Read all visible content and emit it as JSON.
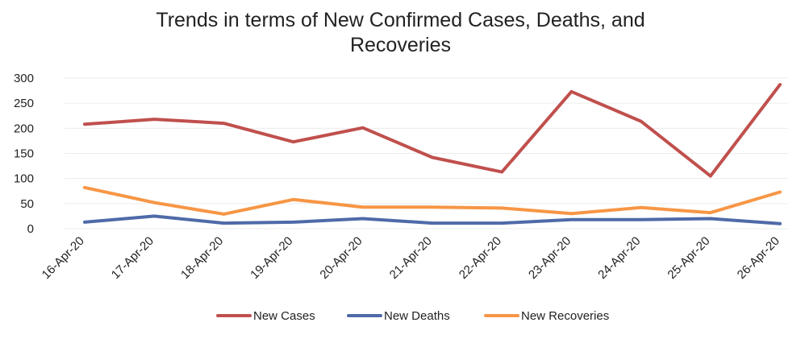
{
  "chart_data": {
    "type": "line",
    "title_lines": [
      "Trends in terms of New Confirmed Cases, Deaths, and",
      "Recoveries"
    ],
    "xlabel": "",
    "ylabel": "",
    "categories": [
      "16-Apr-20",
      "17-Apr-20",
      "18-Apr-20",
      "19-Apr-20",
      "20-Apr-20",
      "21-Apr-20",
      "22-Apr-20",
      "23-Apr-20",
      "24-Apr-20",
      "25-Apr-20",
      "26-Apr-20"
    ],
    "ylim": [
      0,
      300
    ],
    "yticks": [
      0,
      50,
      100,
      150,
      200,
      250,
      300
    ],
    "grid": true,
    "legend_position": "bottom",
    "series": [
      {
        "name": "New Cases",
        "color": "#c0504d",
        "values": [
          208,
          218,
          210,
          173,
          201,
          142,
          113,
          273,
          214,
          105,
          287
        ]
      },
      {
        "name": "New Deaths",
        "color": "#4f6aa8",
        "values": [
          13,
          25,
          11,
          13,
          20,
          11,
          11,
          18,
          18,
          20,
          10
        ]
      },
      {
        "name": "New Recoveries",
        "color": "#f79646",
        "values": [
          82,
          52,
          29,
          58,
          43,
          43,
          41,
          30,
          42,
          32,
          73
        ]
      }
    ]
  }
}
